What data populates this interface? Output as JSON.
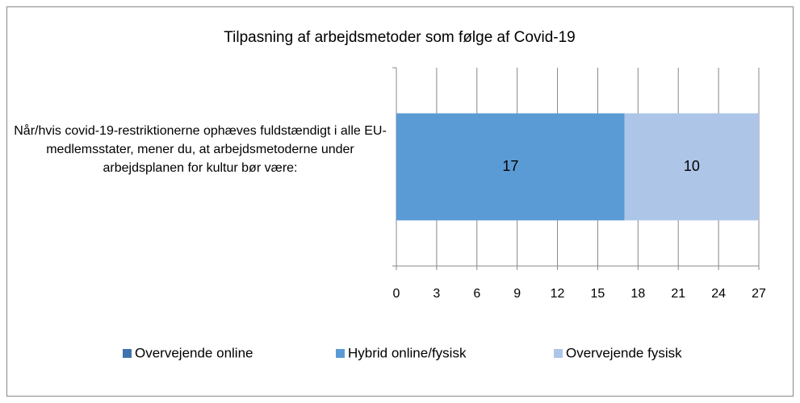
{
  "chart_data": {
    "type": "stacked_bar_horizontal",
    "title": "Tilpasning af arbejdsmetoder som følge af Covid-19",
    "categories": [
      "Når/hvis covid-19-restriktionerne ophæves fuldstændigt i alle EU-medlemsstater, mener du, at arbejdsmetoderne under arbejdsplanen for kultur bør være:"
    ],
    "series": [
      {
        "name": "Overvejende online",
        "color": "#3f73ad",
        "values": [
          0
        ]
      },
      {
        "name": "Hybrid online/fysisk",
        "color": "#5b9bd5",
        "values": [
          17
        ]
      },
      {
        "name": "Overvejende fysisk",
        "color": "#adc5e7",
        "values": [
          10
        ]
      }
    ],
    "xlim": [
      0,
      27
    ],
    "xticks": [
      0,
      3,
      6,
      9,
      12,
      15,
      18,
      21,
      24,
      27
    ],
    "grid": true,
    "legend": "bottom"
  }
}
